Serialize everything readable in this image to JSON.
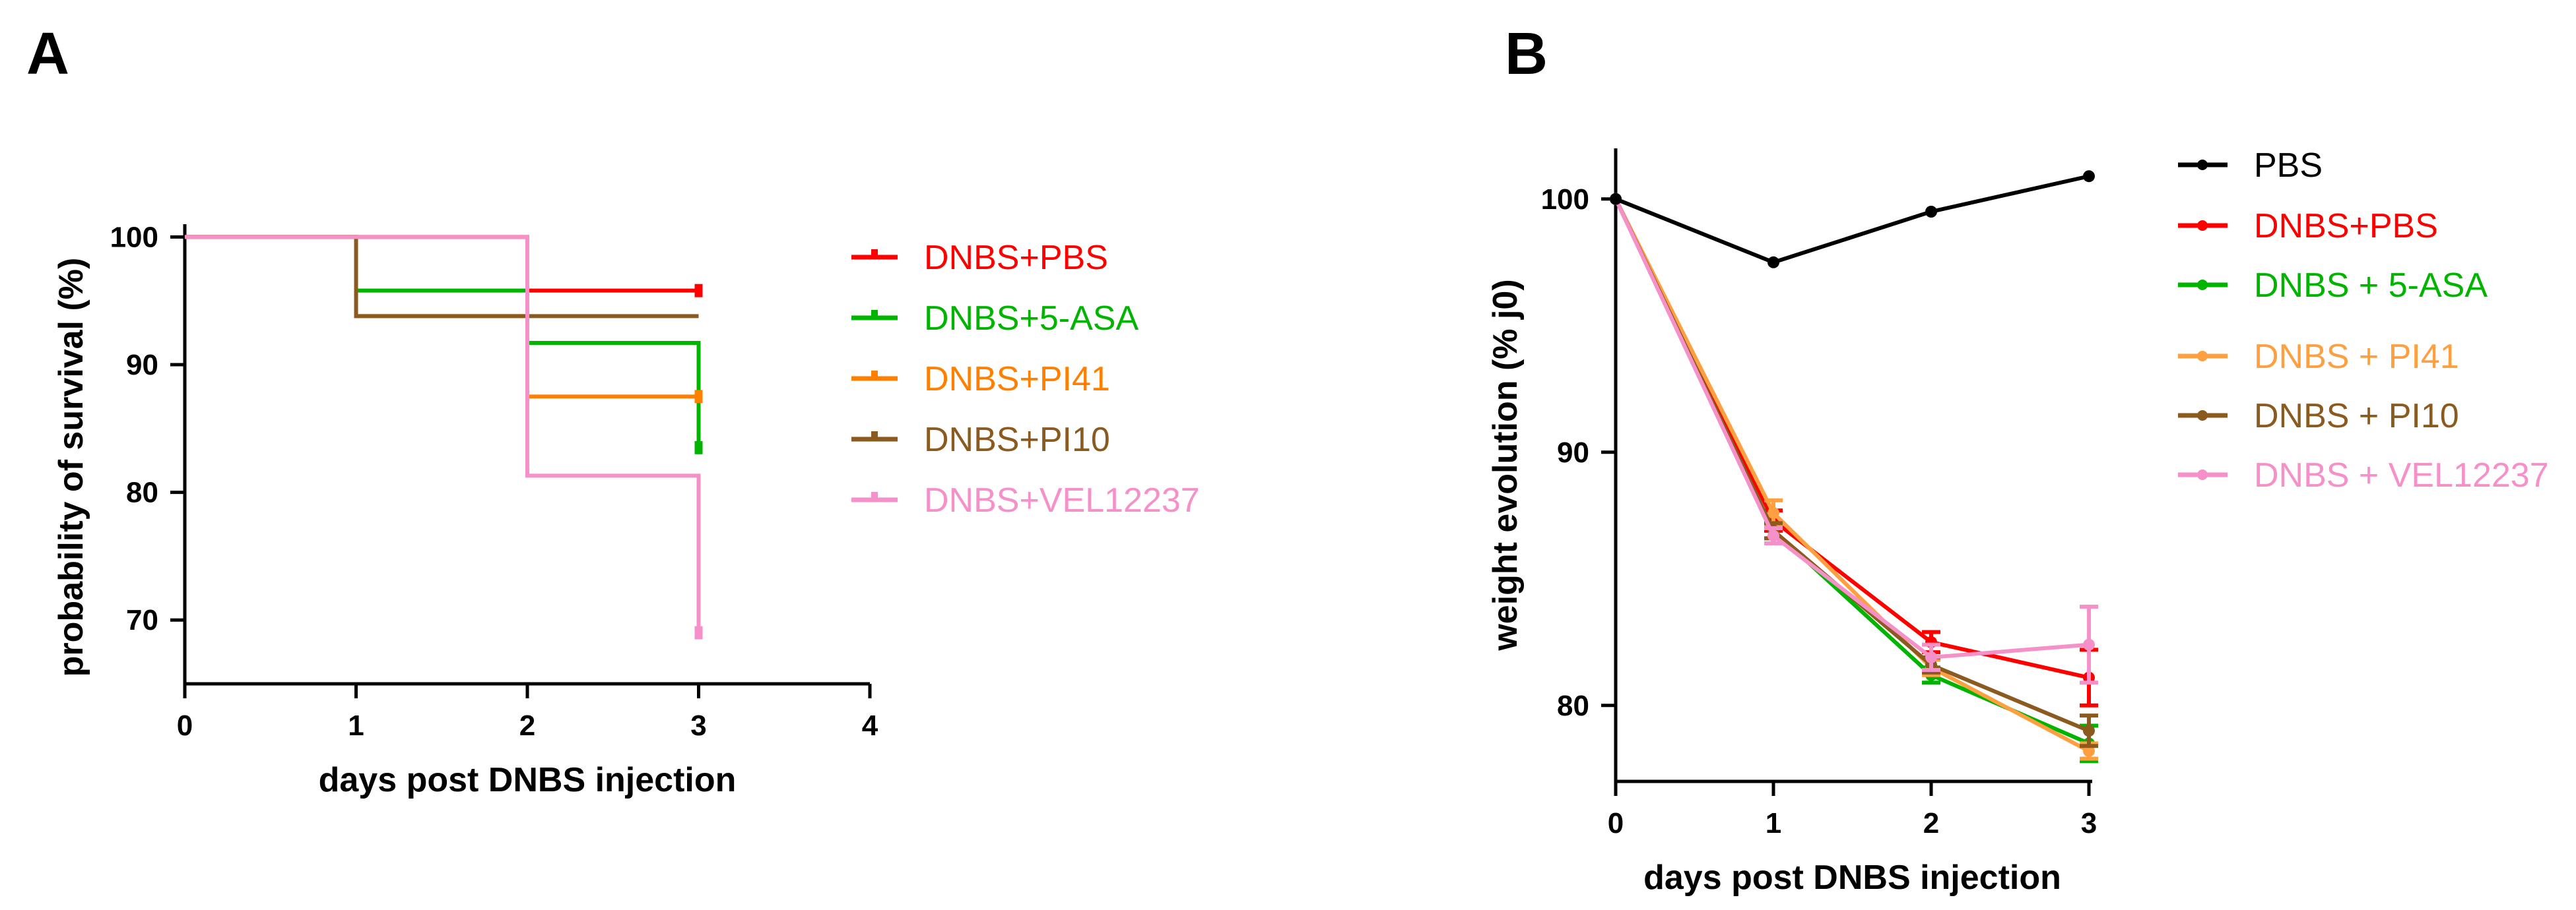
{
  "chart_data": [
    {
      "panel": "A",
      "type": "line",
      "step": true,
      "xlabel": "days post DNBS injection",
      "ylabel": "probability of survival (%)",
      "xlim": [
        0,
        4
      ],
      "ylim": [
        65,
        101
      ],
      "xticks": [
        "0",
        "1",
        "2",
        "3",
        "4"
      ],
      "yticks": [
        "70",
        "80",
        "90",
        "100"
      ],
      "series": [
        {
          "name": "DNBS+PBS",
          "color": "#ff0000",
          "x": [
            0,
            2,
            3
          ],
          "y": [
            100,
            95.8,
            95.8
          ],
          "censor": [
            3
          ]
        },
        {
          "name": "DNBS+5-ASA",
          "color": "#00b400",
          "x": [
            0,
            1,
            2,
            3
          ],
          "y": [
            100,
            95.8,
            91.7,
            83.5
          ],
          "censor": [
            3
          ]
        },
        {
          "name": "DNBS+PI41",
          "color": "#ff7f00",
          "x": [
            0,
            1,
            2,
            3
          ],
          "y": [
            100,
            93.8,
            87.5,
            87.5
          ],
          "censor": [
            3
          ]
        },
        {
          "name": "DNBS+PI10",
          "color": "#8b5a1e",
          "x": [
            0,
            1,
            3
          ],
          "y": [
            100,
            93.8,
            93.8
          ],
          "censor": []
        },
        {
          "name": "DNBS+VEL12237",
          "color": "#f590c8",
          "x": [
            0,
            2,
            3
          ],
          "y": [
            100,
            81.3,
            69
          ],
          "censor": [
            3
          ]
        }
      ],
      "legend": "right"
    },
    {
      "panel": "B",
      "type": "line",
      "xlabel": "days post DNBS injection",
      "ylabel": "weight evolution (% j0)",
      "xlim": [
        0,
        3
      ],
      "ylim": [
        77,
        102
      ],
      "xticks": [
        "0",
        "1",
        "2",
        "3"
      ],
      "yticks": [
        "80",
        "90",
        "100"
      ],
      "series": [
        {
          "name": "PBS",
          "color": "#000000",
          "x": [
            0,
            1,
            2,
            3
          ],
          "y": [
            100,
            97.5,
            99.5,
            100.9
          ],
          "err": [
            0,
            0,
            0,
            0
          ]
        },
        {
          "name": "DNBS+PBS",
          "color": "#ff0000",
          "x": [
            0,
            1,
            2,
            3
          ],
          "y": [
            100,
            87.3,
            82.5,
            81.1
          ],
          "err": [
            0,
            0.4,
            0.4,
            1.1
          ]
        },
        {
          "name": "DNBS + 5-ASA",
          "color": "#00b400",
          "x": [
            0,
            1,
            2,
            3
          ],
          "y": [
            100,
            86.9,
            81.2,
            78.5
          ],
          "err": [
            0,
            0.3,
            0.3,
            0.7
          ]
        },
        {
          "name": "DNBS + PI41",
          "color": "#ffa040",
          "x": [
            0,
            1,
            2,
            3
          ],
          "y": [
            100,
            87.6,
            81.5,
            78.2
          ],
          "err": [
            0,
            0.5,
            0.3,
            0.3
          ]
        },
        {
          "name": "DNBS + PI10",
          "color": "#8b5a1e",
          "x": [
            0,
            1,
            2,
            3
          ],
          "y": [
            100,
            86.9,
            81.6,
            79
          ],
          "err": [
            0,
            0.3,
            0.3,
            0.6
          ]
        },
        {
          "name": "DNBS + VEL12237",
          "color": "#f590c8",
          "x": [
            0,
            1,
            2,
            3
          ],
          "y": [
            100,
            86.7,
            81.9,
            82.4
          ],
          "err": [
            0,
            0.3,
            0.5,
            1.5
          ]
        }
      ],
      "legend": "right"
    }
  ]
}
